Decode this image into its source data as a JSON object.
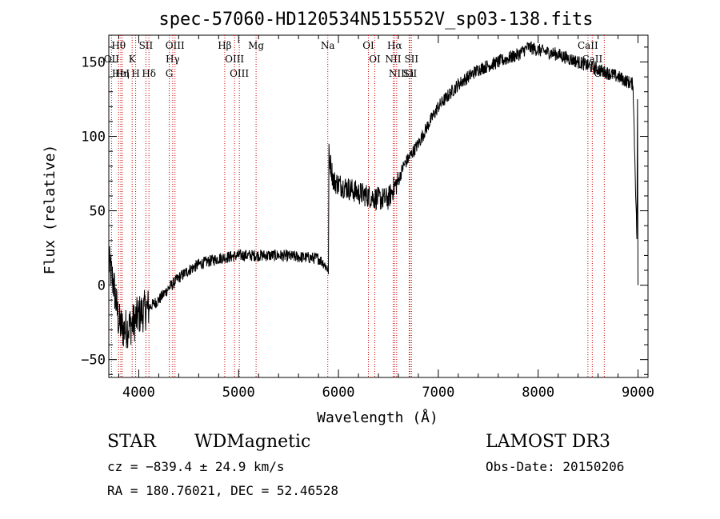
{
  "chart_data": {
    "type": "line",
    "title": "spec-57060-HD120534N515552V_sp03-138.fits",
    "xlabel": "Wavelength (Å)",
    "ylabel": "Flux (relative)",
    "xlim": [
      3700,
      9100
    ],
    "ylim": [
      -62,
      168
    ],
    "xticks": [
      4000,
      5000,
      6000,
      7000,
      8000,
      9000
    ],
    "yticks": [
      -50,
      0,
      50,
      100,
      150
    ],
    "grid": false,
    "series": [
      {
        "name": "flux",
        "x": [
          3700,
          3750,
          3800,
          3850,
          3900,
          3950,
          4000,
          4100,
          4200,
          4300,
          4400,
          4500,
          4600,
          4700,
          4800,
          4900,
          5000,
          5200,
          5400,
          5600,
          5800,
          5850,
          5900,
          5905,
          5950,
          6000,
          6100,
          6200,
          6300,
          6400,
          6500,
          6550,
          6600,
          6650,
          6700,
          6800,
          6900,
          7000,
          7200,
          7400,
          7600,
          7800,
          7900,
          8000,
          8200,
          8400,
          8600,
          8800,
          8950,
          9000
        ],
        "y": [
          15,
          0,
          -25,
          -30,
          -28,
          -25,
          -20,
          -15,
          -10,
          -2,
          5,
          10,
          14,
          16,
          18,
          19,
          20,
          20,
          20,
          19,
          18,
          15,
          10,
          88,
          70,
          68,
          65,
          62,
          60,
          58,
          58,
          65,
          70,
          80,
          85,
          95,
          108,
          120,
          135,
          145,
          150,
          155,
          160,
          158,
          155,
          150,
          145,
          140,
          135,
          0
        ]
      }
    ],
    "emission_lines": [
      {
        "name": "Hθ",
        "wavelength": 3798
      },
      {
        "name": "OII",
        "wavelength": 3727
      },
      {
        "name": "HeI",
        "wavelength": 3820
      },
      {
        "name": "Hη",
        "wavelength": 3835
      },
      {
        "name": "K",
        "wavelength": 3934
      },
      {
        "name": "H",
        "wavelength": 3969
      },
      {
        "name": "SII",
        "wavelength": 4072
      },
      {
        "name": "Hδ",
        "wavelength": 4102
      },
      {
        "name": "OIII",
        "wavelength": 4363
      },
      {
        "name": "Hγ",
        "wavelength": 4340
      },
      {
        "name": "G",
        "wavelength": 4305
      },
      {
        "name": "Hβ",
        "wavelength": 4861
      },
      {
        "name": "OIII",
        "wavelength": 4959
      },
      {
        "name": "OIII",
        "wavelength": 5007
      },
      {
        "name": "Mg",
        "wavelength": 5175
      },
      {
        "name": "Na",
        "wavelength": 5893
      },
      {
        "name": "OI",
        "wavelength": 6300
      },
      {
        "name": "OI",
        "wavelength": 6364
      },
      {
        "name": "Hα",
        "wavelength": 6563
      },
      {
        "name": "NII",
        "wavelength": 6548
      },
      {
        "name": "NII",
        "wavelength": 6583
      },
      {
        "name": "SII",
        "wavelength": 6716
      },
      {
        "name": "Li",
        "wavelength": 6708
      },
      {
        "name": "SII",
        "wavelength": 6731
      },
      {
        "name": "CaII",
        "wavelength": 8498
      },
      {
        "name": "CaII",
        "wavelength": 8542
      },
      {
        "name": "CaII",
        "wavelength": 8662
      }
    ],
    "line_color": "#000000",
    "marker_color": "#cc0000"
  },
  "footer": {
    "class_label": "STAR",
    "subclass_label": "WDMagnetic",
    "survey": "LAMOST DR3",
    "cz": "cz = −839.4 ± 24.9 km/s",
    "obs_date": "Obs-Date: 20150206",
    "coords": "RA = 180.76021, DEC =  52.46528"
  }
}
